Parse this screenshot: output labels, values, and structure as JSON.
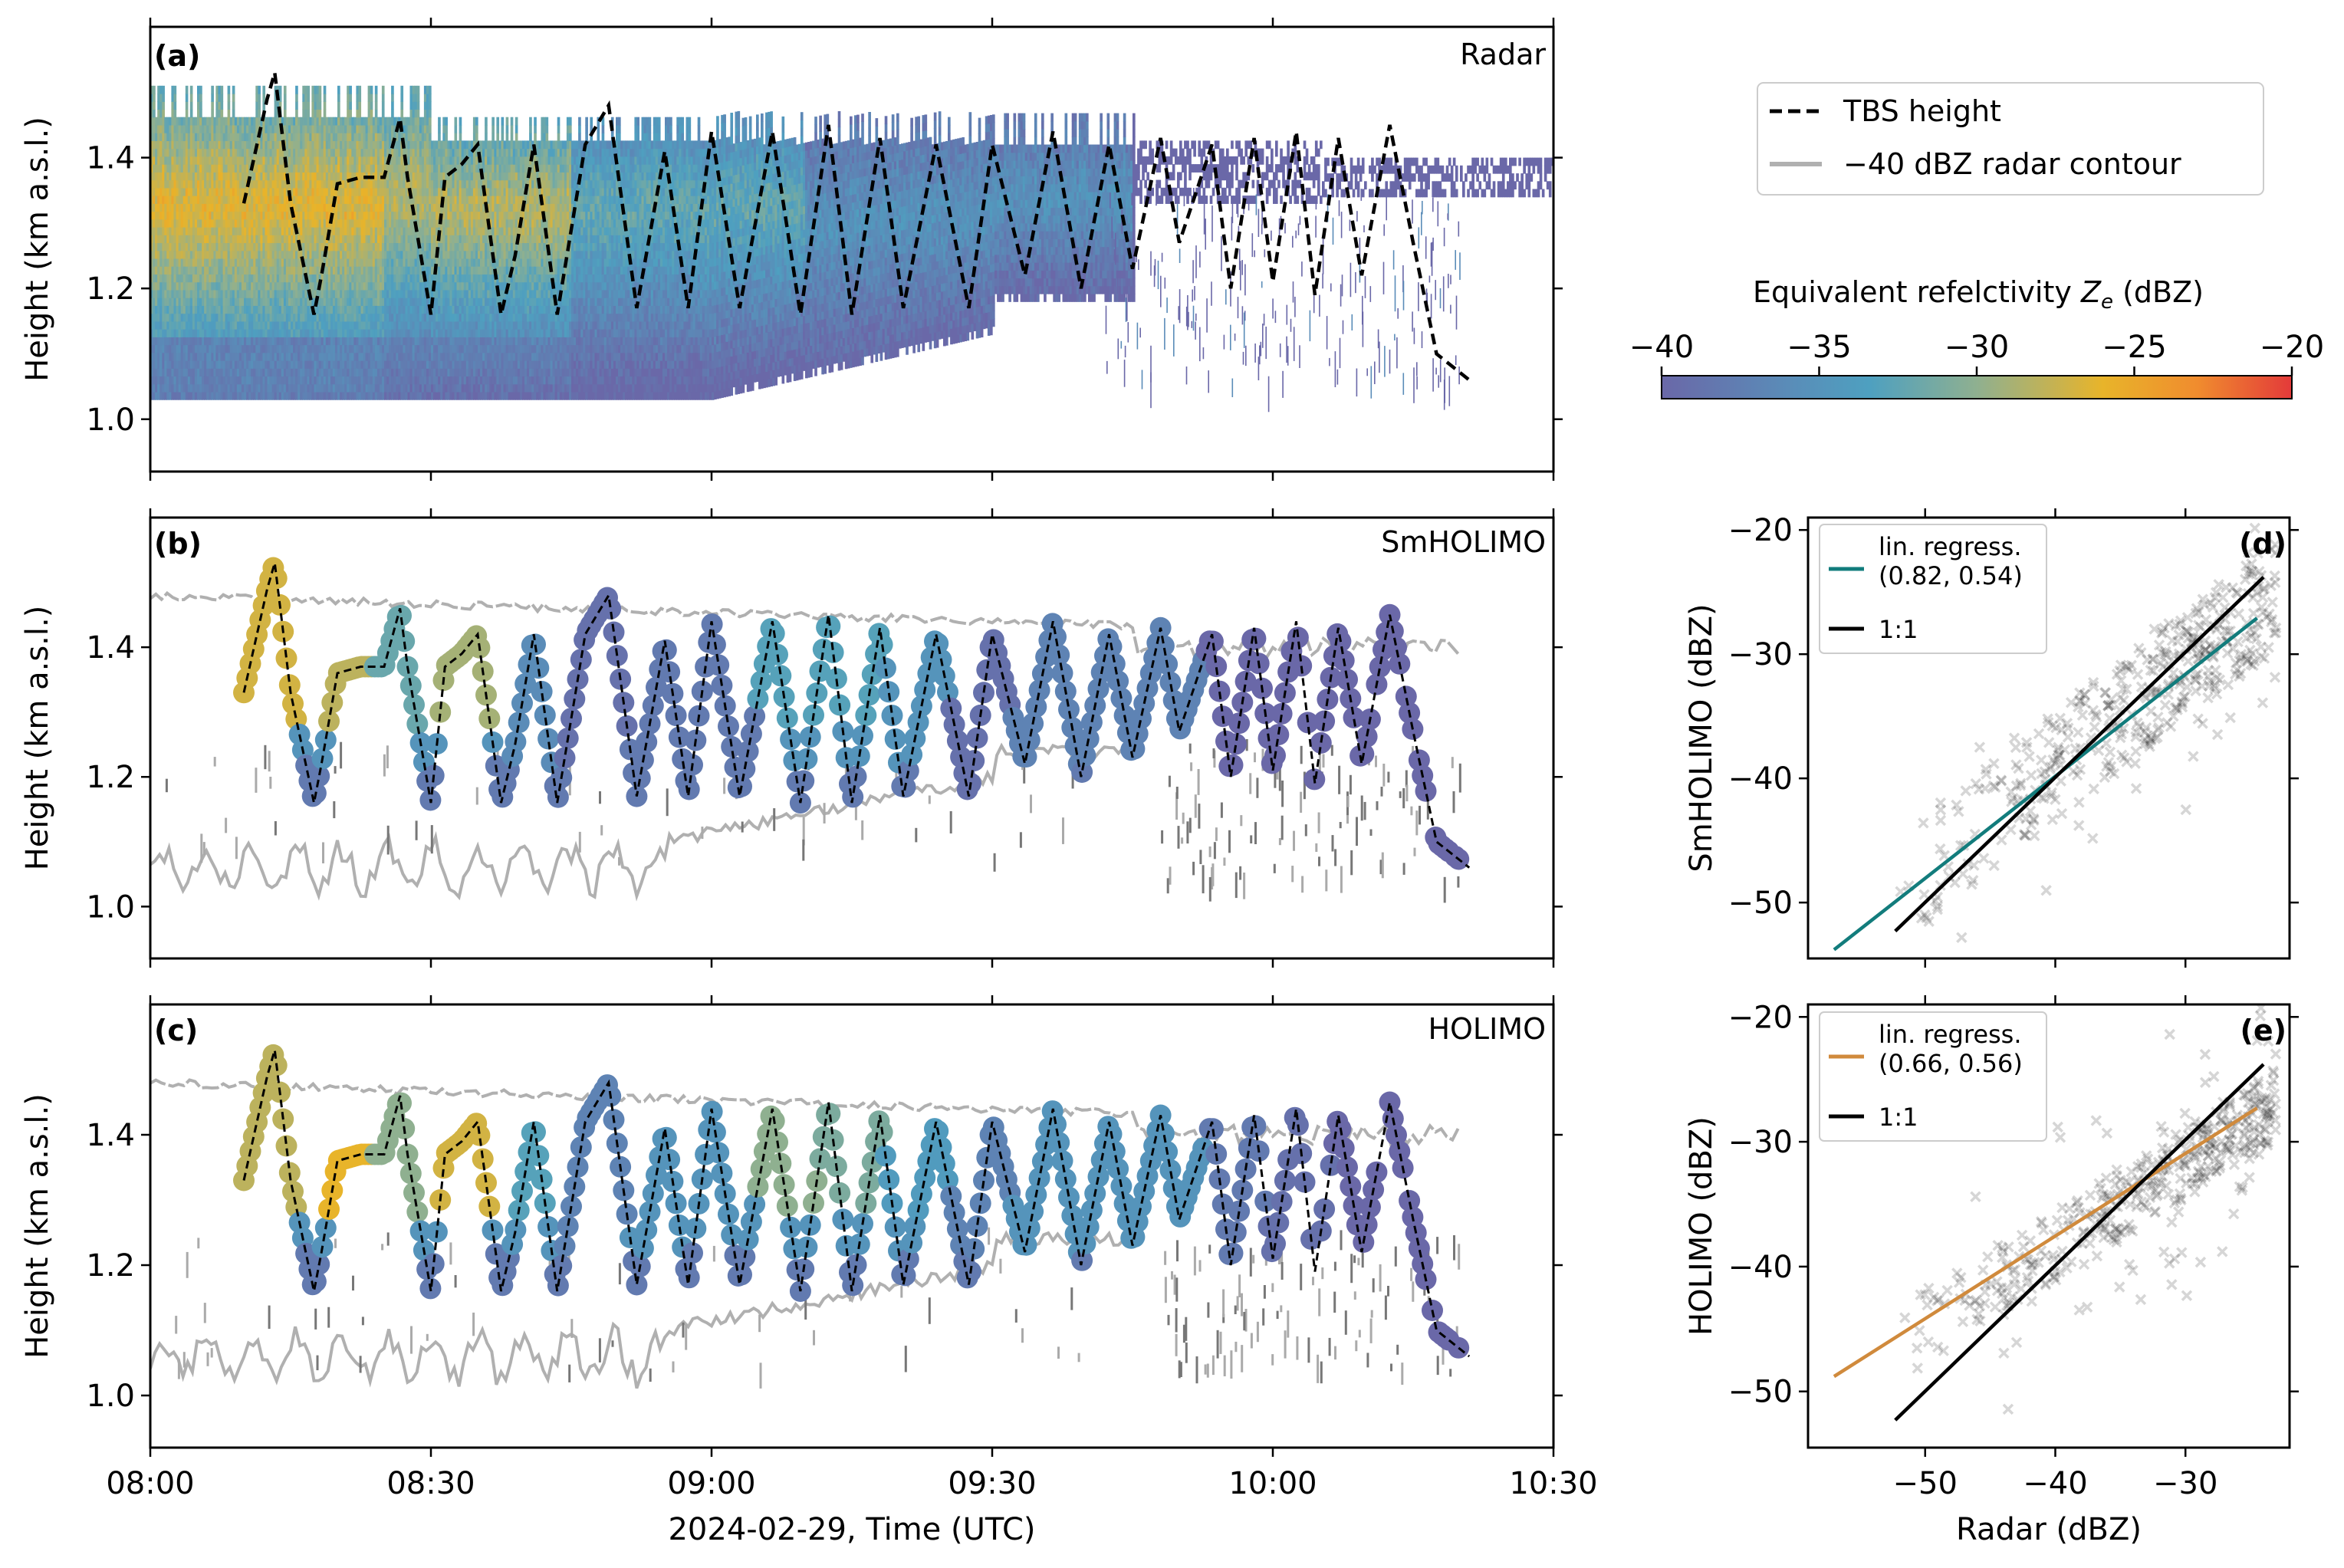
{
  "figure": {
    "legend": {
      "tbs": "TBS height",
      "contour": "−40 dBZ radar contour",
      "tbs_color": "#000000",
      "contour_color": "#b0b0b0"
    },
    "colorbar": {
      "label_prefix": "Equivalent refelctivity ",
      "label_symbol": "Z",
      "label_sub": "e",
      "label_suffix": " (dBZ)",
      "ticks": [
        "−40",
        "−35",
        "−30",
        "−25",
        "−20"
      ],
      "range": [
        -40,
        -20
      ],
      "colormap": [
        "#6a68a8",
        "#5a8cb8",
        "#4ea0c0",
        "#8fb090",
        "#e8b42a",
        "#f08c2e",
        "#e33a3a"
      ]
    },
    "xlabel": "2024-02-29, Time (UTC)",
    "ylabel_time": "Height (km a.s.l.)"
  },
  "chart_data": [
    {
      "panel": "a",
      "panel_label": "(a)",
      "title": "Radar",
      "type": "heatmap",
      "xlim": [
        "08:00",
        "10:30"
      ],
      "ylim": [
        0.92,
        1.6
      ],
      "x_ticks": [
        "08:00",
        "08:30",
        "09:00",
        "09:30",
        "10:00",
        "10:30"
      ],
      "y_ticks": [
        "1.0",
        "1.2",
        "1.4"
      ],
      "ylabel": "Height (km a.s.l.)",
      "cloud_layer": {
        "base_km": 1.03,
        "top_km": 1.46,
        "unit": "dBZ"
      },
      "tbs_height": {
        "name": "TBS height",
        "time_min": [
          10.0,
          12.5,
          13.3,
          15.0,
          17.5,
          18.3,
          20.0,
          22.5,
          25.0,
          26.7,
          27.5,
          30.0,
          31.5,
          33.3,
          35.0,
          37.5,
          39.0,
          41.0,
          43.5,
          46.5,
          49.0,
          52.0,
          55.0,
          57.5,
          60.0,
          63.0,
          66.5,
          69.5,
          72.5,
          75.0,
          78.0,
          80.5,
          84.0,
          87.5,
          90.0,
          93.5,
          96.5,
          99.5,
          102.5,
          105.0,
          108.0,
          110.0,
          113.5,
          115.5,
          118.0,
          120.0,
          122.5,
          124.5,
          127.0,
          129.5,
          132.5,
          135.0,
          137.5,
          141.0
        ],
        "height_km": [
          1.33,
          1.49,
          1.53,
          1.33,
          1.16,
          1.22,
          1.36,
          1.37,
          1.37,
          1.46,
          1.37,
          1.16,
          1.37,
          1.39,
          1.42,
          1.16,
          1.25,
          1.42,
          1.16,
          1.42,
          1.48,
          1.17,
          1.41,
          1.17,
          1.44,
          1.17,
          1.44,
          1.16,
          1.45,
          1.16,
          1.43,
          1.17,
          1.42,
          1.17,
          1.42,
          1.22,
          1.44,
          1.2,
          1.42,
          1.23,
          1.43,
          1.27,
          1.42,
          1.2,
          1.43,
          1.21,
          1.44,
          1.19,
          1.43,
          1.22,
          1.45,
          1.27,
          1.1,
          1.06
        ]
      }
    },
    {
      "panel": "b",
      "panel_label": "(b)",
      "title": "SmHOLIMO",
      "type": "line",
      "xlim": [
        "08:00",
        "10:30"
      ],
      "ylim": [
        0.92,
        1.6
      ],
      "x_ticks": [
        "08:00",
        "08:30",
        "09:00",
        "09:30",
        "10:00",
        "10:30"
      ],
      "y_ticks": [
        "1.0",
        "1.2",
        "1.4"
      ],
      "ylabel": "Height (km a.s.l.)",
      "series": [
        {
          "name": "TBS height"
        },
        {
          "name": "−40 dBZ radar contour"
        }
      ],
      "reflectivity_along_track_dBZ": [
        -27,
        -28,
        -32,
        -29,
        -36,
        -39,
        -38,
        -38,
        -33,
        -33,
        -35,
        -39,
        -37,
        -37,
        -37,
        -40,
        -40,
        -40,
        -40
      ]
    },
    {
      "panel": "c",
      "panel_label": "(c)",
      "title": "HOLIMO",
      "type": "line",
      "xlim": [
        "08:00",
        "10:30"
      ],
      "ylim": [
        0.92,
        1.6
      ],
      "x_ticks": [
        "08:00",
        "08:30",
        "09:00",
        "09:30",
        "10:00",
        "10:30"
      ],
      "x_tick_labels_shown": true,
      "y_ticks": [
        "1.0",
        "1.2",
        "1.4"
      ],
      "ylabel": "Height (km a.s.l.)",
      "xlabel": "2024-02-29, Time (UTC)",
      "series": [
        {
          "name": "TBS height"
        },
        {
          "name": "−40 dBZ radar contour"
        }
      ],
      "reflectivity_along_track_dBZ": [
        -28,
        -26,
        -30,
        -27,
        -33,
        -37,
        -35,
        -35,
        -30,
        -31,
        -34,
        -37,
        -35,
        -35,
        -35,
        -38,
        -39,
        -40,
        -40
      ]
    },
    {
      "panel": "d",
      "panel_label": "(d)",
      "type": "scatter",
      "xlabel": "",
      "ylabel": "SmHOLIMO (dBZ)",
      "xlim": [
        -59,
        -22
      ],
      "ylim": [
        -54.5,
        -19
      ],
      "x_ticks": [
        -50,
        -40,
        -30
      ],
      "y_ticks": [
        "−20",
        "−30",
        "−40",
        "−50"
      ],
      "series": [
        {
          "name": "lin. regress.",
          "label2": "(0.82, 0.54)",
          "color": "#127c7c",
          "x": [
            -57,
            -24.5
          ],
          "y": [
            -53.8,
            -27.1
          ]
        },
        {
          "name": "1:1",
          "color": "#000000",
          "x": [
            -52.3,
            -24.0
          ],
          "y": [
            -52.3,
            -23.8
          ]
        }
      ],
      "points_approx": {
        "cluster_center": [
          -35,
          -37
        ],
        "x_range": [
          -57,
          -22
        ],
        "y_range": [
          -54,
          -20
        ],
        "color": "#000000"
      }
    },
    {
      "panel": "e",
      "panel_label": "(e)",
      "type": "scatter",
      "xlabel": "Radar (dBZ)",
      "ylabel": "HOLIMO (dBZ)",
      "xlim": [
        -59,
        -22
      ],
      "ylim": [
        -54.5,
        -19
      ],
      "x_ticks": [
        "−50",
        "−40",
        "−30"
      ],
      "y_ticks": [
        "−20",
        "−30",
        "−40",
        "−50"
      ],
      "series": [
        {
          "name": "lin. regress.",
          "label2": "(0.66, 0.56)",
          "color": "#d08a3c",
          "x": [
            -57,
            -24.5
          ],
          "y": [
            -48.8,
            -27.3
          ]
        },
        {
          "name": "1:1",
          "color": "#000000",
          "x": [
            -52.3,
            -24.0
          ],
          "y": [
            -52.3,
            -23.8
          ]
        }
      ],
      "points_approx": {
        "cluster_center": [
          -33,
          -33
        ],
        "x_range": [
          -57,
          -22
        ],
        "y_range": [
          -53,
          -20
        ],
        "color": "#000000"
      }
    }
  ]
}
